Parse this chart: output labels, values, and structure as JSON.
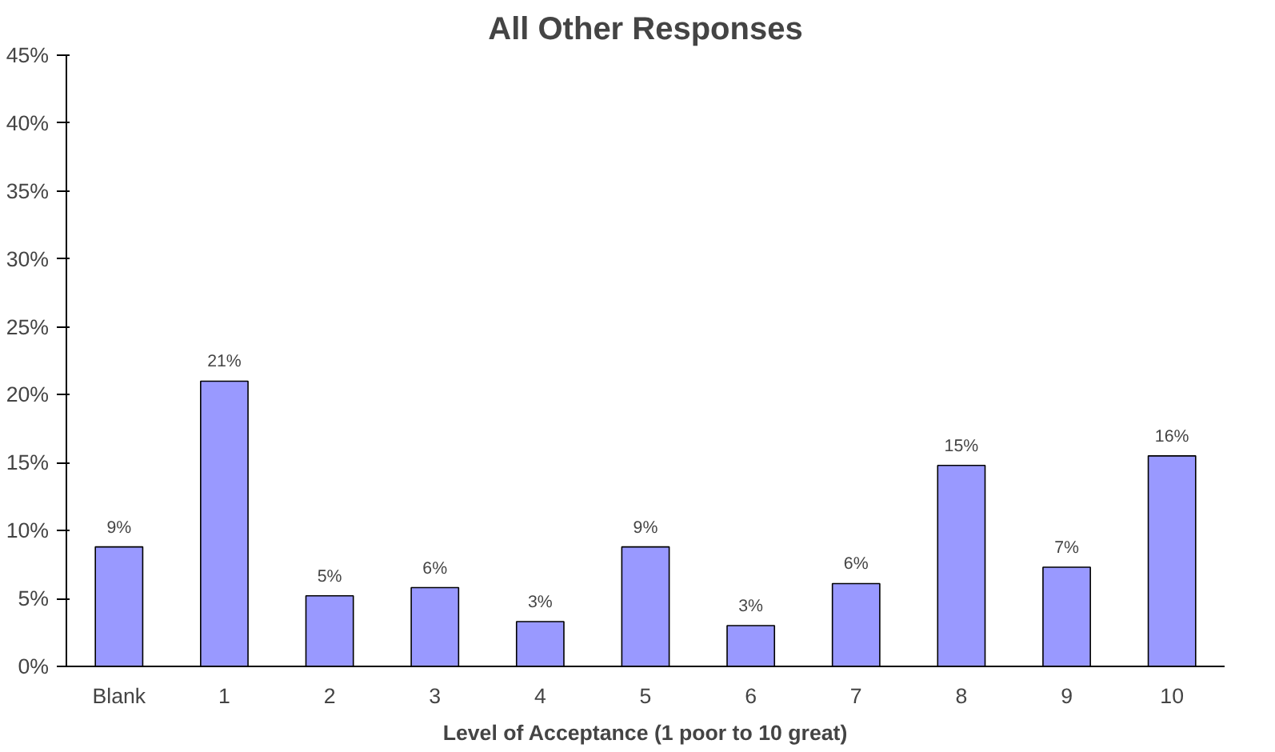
{
  "chart_data": {
    "type": "bar",
    "title": "All Other Responses",
    "xlabel": "Level of Acceptance (1 poor to 10 great)",
    "categories": [
      "Blank",
      "1",
      "2",
      "3",
      "4",
      "5",
      "6",
      "7",
      "8",
      "9",
      "10"
    ],
    "values": [
      8.8,
      21,
      5.2,
      5.8,
      3.3,
      8.8,
      3.0,
      6.1,
      14.8,
      7.3,
      15.5
    ],
    "value_labels": [
      "9%",
      "21%",
      "5%",
      "6%",
      "3%",
      "9%",
      "3%",
      "6%",
      "15%",
      "7%",
      "16%"
    ],
    "color": "#9999ff",
    "ylim": [
      0,
      45
    ],
    "yticks": [
      {
        "value": 0,
        "label": "0%"
      },
      {
        "value": 5,
        "label": "5%"
      },
      {
        "value": 10,
        "label": "10%"
      },
      {
        "value": 15,
        "label": "15%"
      },
      {
        "value": 20,
        "label": "20%"
      },
      {
        "value": 25,
        "label": "25%"
      },
      {
        "value": 30,
        "label": "30%"
      },
      {
        "value": 35,
        "label": "35%"
      },
      {
        "value": 40,
        "label": "40%"
      },
      {
        "value": 45,
        "label": "45%"
      }
    ],
    "grid": false
  }
}
